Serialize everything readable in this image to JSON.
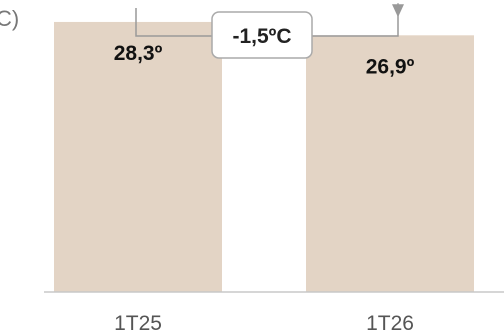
{
  "chart_data": {
    "type": "bar",
    "categories": [
      "1T25",
      "1T26"
    ],
    "values": [
      28.3,
      26.9
    ],
    "value_labels": [
      "28,3º",
      "26,9º"
    ],
    "ylabel_fragment": "C)",
    "annotation": {
      "text": "-1,5ºC",
      "from": "1T25",
      "to": "1T26"
    },
    "ylim": [
      0,
      30.6
    ],
    "grid": false,
    "legend": "none",
    "colors": {
      "bar": "#e3d4c5",
      "axis": "#c8c8c8",
      "connector": "#999999",
      "box_border": "#aaaaaa"
    }
  }
}
